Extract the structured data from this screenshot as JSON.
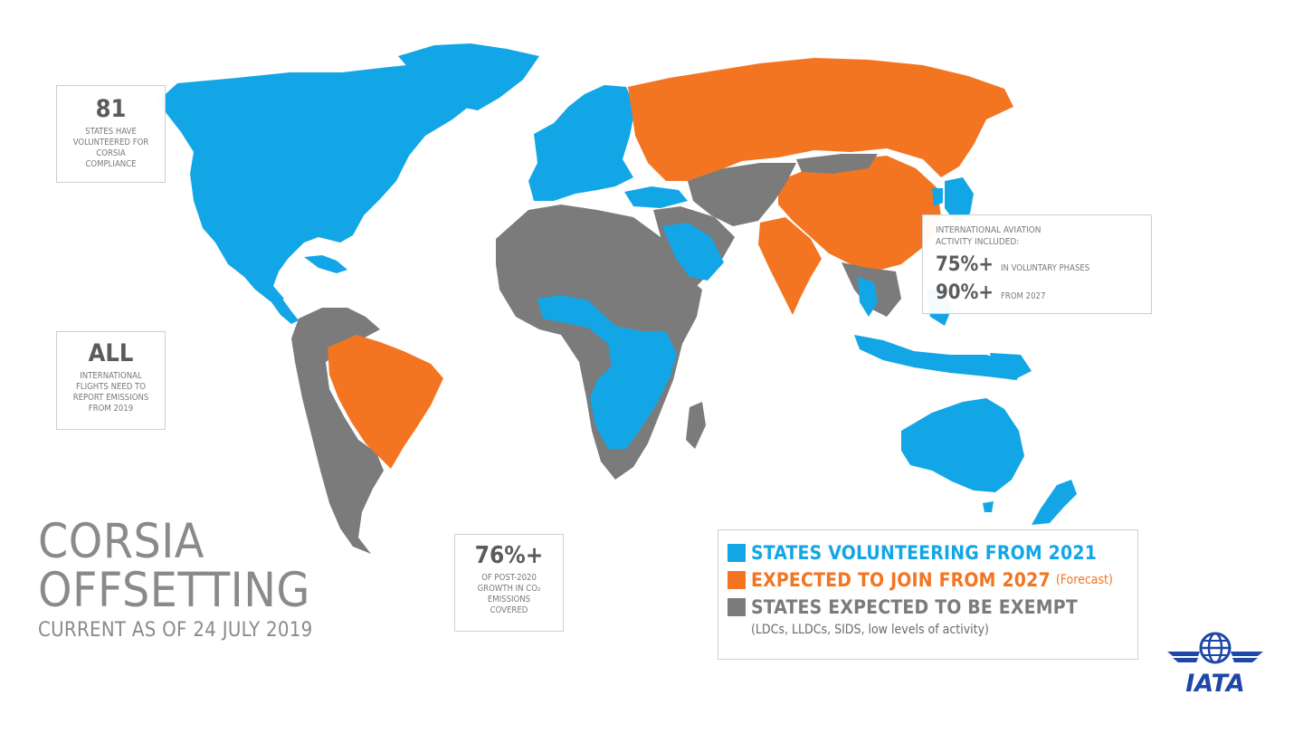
{
  "title": {
    "line1": "CORSIA",
    "line2": "OFFSETTING",
    "subtitle": "CURRENT AS OF 24 JULY 2019"
  },
  "stat_boxes": [
    {
      "big": "81",
      "small": [
        "STATES HAVE",
        "VOLUNTEERED FOR",
        "CORSIA",
        "COMPLIANCE"
      ]
    },
    {
      "big": "ALL",
      "small": [
        "INTERNATIONAL",
        "FLIGHTS NEED TO",
        "REPORT EMISSIONS",
        "FROM 2019"
      ]
    },
    {
      "big": "76%+",
      "small": [
        "OF POST-2020",
        "GROWTH IN CO₂",
        "EMISSIONS",
        "COVERED"
      ]
    }
  ],
  "intl_box": {
    "heading": [
      "INTERNATIONAL AVIATION",
      "ACTIVITY INCLUDED:"
    ],
    "rows": [
      {
        "pct": "75%+",
        "text": "IN VOLUNTARY PHASES"
      },
      {
        "pct": "90%+",
        "text": "FROM 2027"
      }
    ]
  },
  "legend": {
    "items": [
      {
        "label": "STATES VOLUNTEERING FROM 2021",
        "note": "",
        "color": "#13a6e6"
      },
      {
        "label": "EXPECTED TO JOIN FROM 2027",
        "note": "(Forecast)",
        "color": "#f37521"
      },
      {
        "label": "STATES EXPECTED TO BE EXEMPT",
        "note": "",
        "color": "#7b7b7b"
      }
    ],
    "sub": "(LDCs, LLDCs, SIDS, low levels of activity)"
  },
  "logo": {
    "text": "IATA",
    "color": "#1e47a8"
  },
  "colors": {
    "volunteering": "#13a6e6",
    "expected_2027": "#f37521",
    "exempt": "#7b7b7b"
  }
}
